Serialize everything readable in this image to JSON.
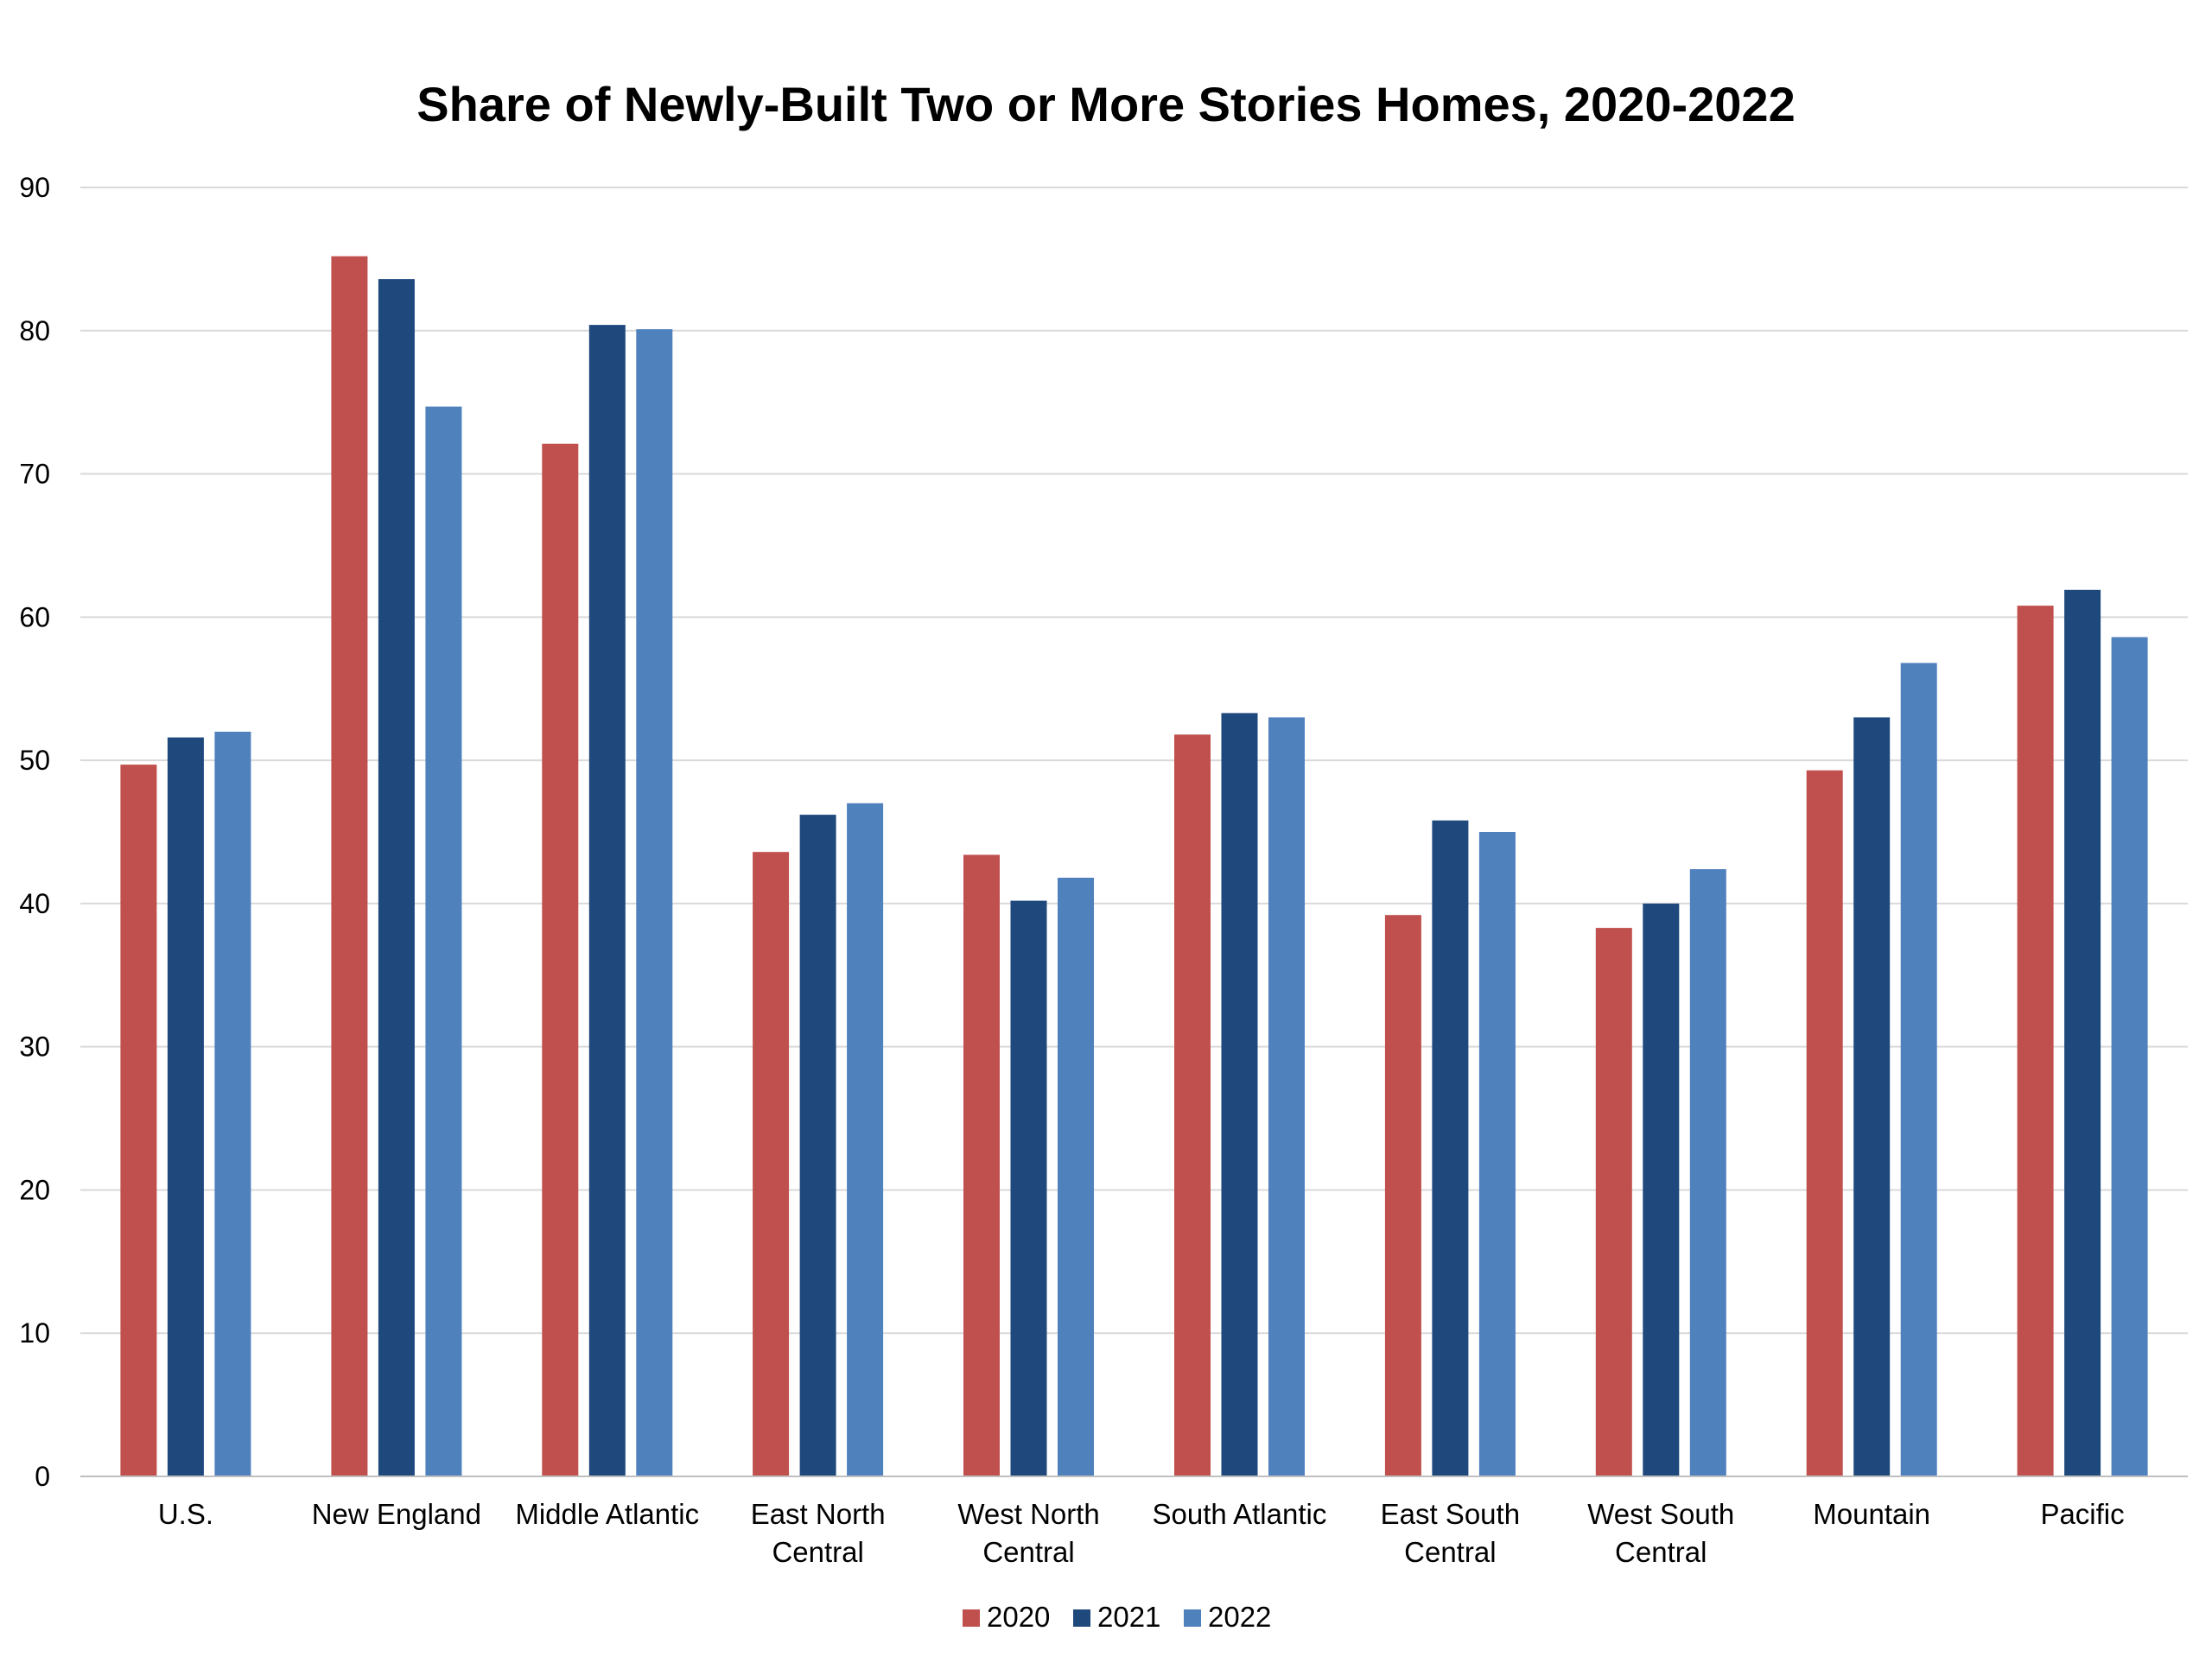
{
  "chart_data": {
    "type": "bar",
    "title": "Share of Newly-Built Two or More Stories Homes, 2020-2022",
    "xlabel": "",
    "ylabel": "",
    "ylim": [
      0,
      90
    ],
    "yticks": [
      0,
      10,
      20,
      30,
      40,
      50,
      60,
      70,
      80,
      90
    ],
    "grid": true,
    "legend_position": "bottom",
    "categories": [
      [
        "U.S."
      ],
      [
        "New England"
      ],
      [
        "Middle Atlantic"
      ],
      [
        "East North",
        "Central"
      ],
      [
        "West North",
        "Central"
      ],
      [
        "South Atlantic"
      ],
      [
        "East South",
        "Central"
      ],
      [
        "West South",
        "Central"
      ],
      [
        "Mountain"
      ],
      [
        "Pacific"
      ]
    ],
    "series": [
      {
        "name": "2020",
        "color": "#c0504d",
        "values": [
          49.7,
          85.2,
          72.1,
          43.6,
          43.4,
          51.8,
          39.2,
          38.3,
          49.3,
          60.8
        ]
      },
      {
        "name": "2021",
        "color": "#1f497d",
        "values": [
          51.6,
          83.6,
          80.4,
          46.2,
          40.2,
          53.3,
          45.8,
          40.0,
          53.0,
          61.9
        ]
      },
      {
        "name": "2022",
        "color": "#4f81bd",
        "values": [
          52.0,
          74.7,
          80.1,
          47.0,
          41.8,
          53.0,
          45.0,
          42.4,
          56.8,
          58.6
        ]
      }
    ]
  }
}
